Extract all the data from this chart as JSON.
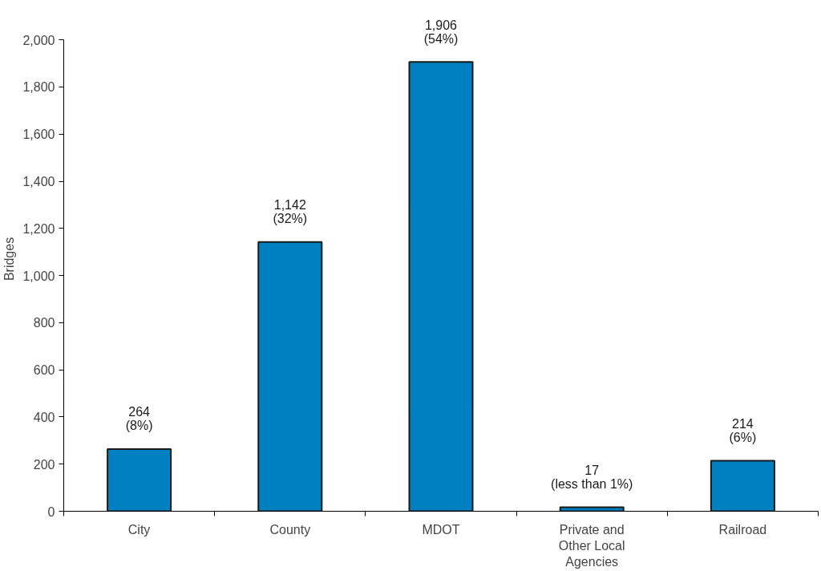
{
  "chart_data": {
    "type": "bar",
    "ylabel": "Bridges",
    "categories": [
      "City",
      "County",
      "MDOT",
      "Private and\nOther Local\nAgencies",
      "Railroad"
    ],
    "values": [
      264,
      1142,
      1906,
      17,
      214
    ],
    "value_labels": [
      "264\n(8%)",
      "1,142\n(32%)",
      "1,906\n(54%)",
      "17\n(less than 1%)",
      "214\n(6%)"
    ],
    "color": "#0080c0",
    "ylim": [
      0,
      2000
    ],
    "yticks": [
      0,
      {
        "value": 200,
        "label": "200"
      },
      {
        "value": 400,
        "label": "400"
      },
      {
        "value": 600,
        "label": "600"
      },
      {
        "value": 800,
        "label": "800"
      },
      {
        "value": 1000,
        "label": "1,000"
      },
      {
        "value": 1200,
        "label": "1,200"
      },
      {
        "value": 1400,
        "label": "1,400"
      },
      {
        "value": 1600,
        "label": "1,600"
      },
      {
        "value": 1800,
        "label": "1,800"
      },
      {
        "value": 2000,
        "label": "2,000"
      }
    ],
    "grid": false
  }
}
